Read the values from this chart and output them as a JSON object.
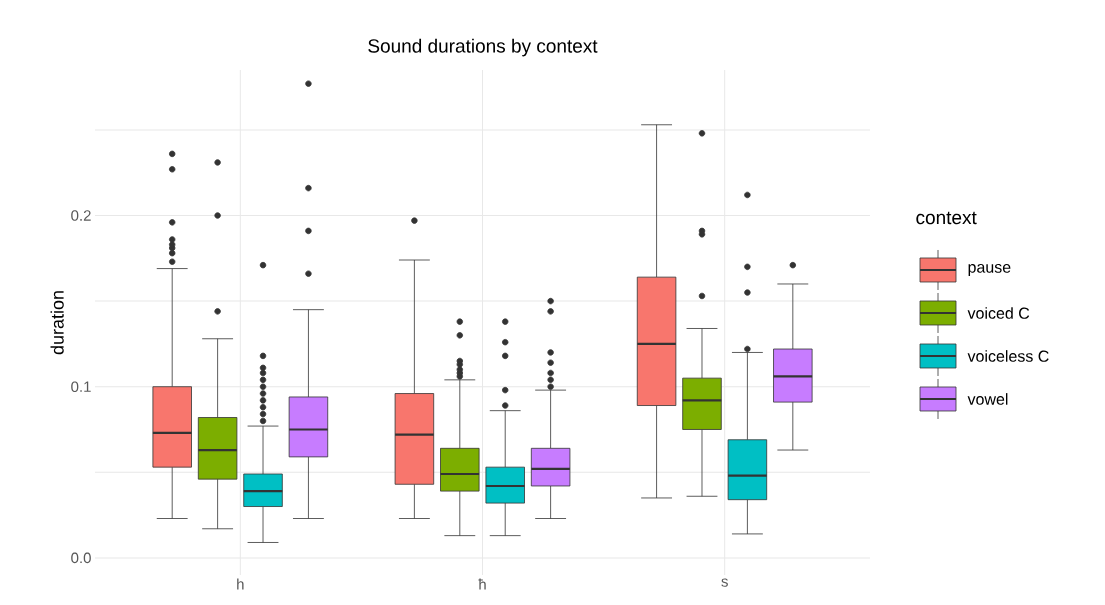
{
  "chart_data": {
    "type": "box",
    "title": "Sound durations by context",
    "ylabel": "duration",
    "legend_title": "context",
    "legend": "right",
    "grid": true,
    "categories": [
      "h",
      "ħ",
      "s"
    ],
    "ylim": [
      -0.01,
      0.285
    ],
    "yticks": [
      {
        "value": 0,
        "label": "0.0"
      },
      {
        "value": 0.05,
        "label": null
      },
      0.1,
      {
        "value": 0.15,
        "label": null
      },
      0.2,
      {
        "value": 0.25,
        "label": null
      }
    ],
    "series": [
      {
        "name": "pause",
        "color": "#f8766d",
        "boxes": [
          {
            "low": 0.023,
            "q1": 0.053,
            "median": 0.073,
            "q3": 0.1,
            "high": 0.169,
            "outliers": [
              0.173,
              0.178,
              0.181,
              0.183,
              0.186,
              0.196,
              0.227,
              0.236
            ]
          },
          {
            "low": 0.023,
            "q1": 0.043,
            "median": 0.072,
            "q3": 0.096,
            "high": 0.174,
            "outliers": [
              0.197
            ]
          },
          {
            "low": 0.035,
            "q1": 0.089,
            "median": 0.125,
            "q3": 0.164,
            "high": 0.253
          }
        ]
      },
      {
        "name": "voiced C",
        "color": "#7cae00",
        "boxes": [
          {
            "low": 0.017,
            "q1": 0.046,
            "median": 0.063,
            "q3": 0.082,
            "high": 0.128,
            "outliers": [
              0.144,
              0.2,
              0.231
            ]
          },
          {
            "low": 0.013,
            "q1": 0.039,
            "median": 0.049,
            "q3": 0.064,
            "high": 0.104,
            "outliers": [
              0.106,
              0.108,
              0.11,
              0.113,
              0.115,
              0.13,
              0.138
            ]
          },
          {
            "low": 0.036,
            "q1": 0.075,
            "median": 0.092,
            "q3": 0.105,
            "high": 0.134,
            "outliers": [
              0.153,
              0.189,
              0.191,
              0.248
            ]
          }
        ]
      },
      {
        "name": "voiceless C",
        "color": "#00bfc4",
        "boxes": [
          {
            "low": 0.009,
            "q1": 0.03,
            "median": 0.039,
            "q3": 0.049,
            "high": 0.077,
            "outliers": [
              0.08,
              0.084,
              0.088,
              0.092,
              0.096,
              0.1,
              0.104,
              0.108,
              0.111,
              0.118,
              0.171
            ]
          },
          {
            "low": 0.013,
            "q1": 0.032,
            "median": 0.042,
            "q3": 0.053,
            "high": 0.086,
            "outliers": [
              0.089,
              0.098,
              0.118,
              0.126,
              0.138
            ]
          },
          {
            "low": 0.014,
            "q1": 0.034,
            "median": 0.048,
            "q3": 0.069,
            "high": 0.12,
            "outliers": [
              0.122,
              0.155,
              0.17,
              0.212
            ]
          }
        ]
      },
      {
        "name": "vowel",
        "color": "#c77cff",
        "boxes": [
          {
            "low": 0.023,
            "q1": 0.059,
            "median": 0.075,
            "q3": 0.094,
            "high": 0.145,
            "outliers": [
              0.166,
              0.191,
              0.216,
              0.277
            ]
          },
          {
            "low": 0.023,
            "q1": 0.042,
            "median": 0.052,
            "q3": 0.064,
            "high": 0.098,
            "outliers": [
              0.1,
              0.104,
              0.108,
              0.114,
              0.12,
              0.144,
              0.15
            ]
          },
          {
            "low": 0.063,
            "q1": 0.091,
            "median": 0.106,
            "q3": 0.122,
            "high": 0.16,
            "outliers": [
              0.171
            ]
          }
        ]
      }
    ]
  }
}
